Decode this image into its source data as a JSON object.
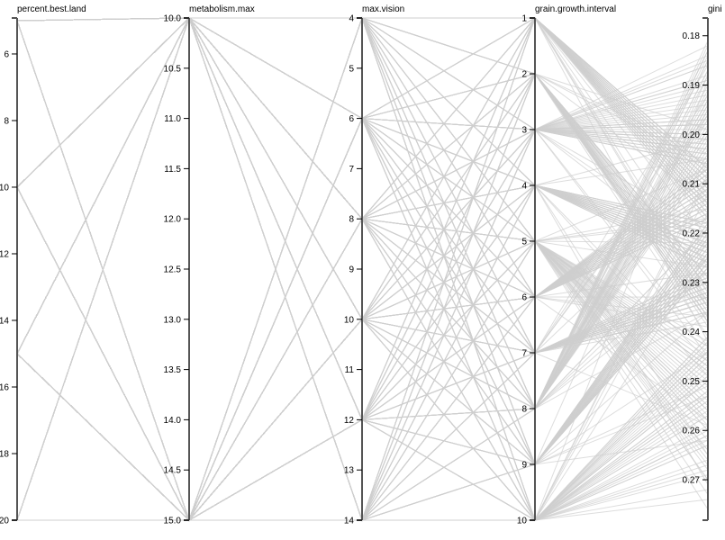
{
  "chart_data": {
    "type": "parallel-coordinates",
    "title": "",
    "grid": false,
    "dimensions": [
      {
        "name": "percent.best.land",
        "domain": [
          4.92,
          20
        ],
        "ticks": [
          6,
          8,
          10,
          12,
          14,
          16,
          18,
          20
        ],
        "tick_labels": [
          "6",
          "8",
          "10",
          "12",
          "14",
          "16",
          "18",
          "20"
        ],
        "levels": [
          5,
          10,
          15,
          20
        ]
      },
      {
        "name": "metabolism.max",
        "domain": [
          10,
          15
        ],
        "ticks": [
          10,
          10.5,
          11,
          11.5,
          12,
          12.5,
          13,
          13.5,
          14,
          14.5,
          15
        ],
        "tick_labels": [
          "10.0",
          "10.5",
          "11.0",
          "11.5",
          "12.0",
          "12.5",
          "13.0",
          "13.5",
          "14.0",
          "14.5",
          "15.0"
        ],
        "levels": [
          10,
          15
        ]
      },
      {
        "name": "max.vision",
        "domain": [
          4,
          14
        ],
        "ticks": [
          4,
          5,
          6,
          7,
          8,
          9,
          10,
          11,
          12,
          13,
          14
        ],
        "tick_labels": [
          "4",
          "5",
          "6",
          "7",
          "8",
          "9",
          "10",
          "11",
          "12",
          "13",
          "14"
        ],
        "levels": [
          4,
          6,
          8,
          10,
          12,
          14
        ]
      },
      {
        "name": "grain.growth.interval",
        "domain": [
          1,
          10
        ],
        "ticks": [
          1,
          2,
          3,
          4,
          5,
          6,
          7,
          8,
          9,
          10
        ],
        "tick_labels": [
          "1",
          "2",
          "3",
          "4",
          "5",
          "6",
          "7",
          "8",
          "9",
          "10"
        ],
        "levels": [
          1,
          2,
          3,
          4,
          5,
          6,
          7,
          8,
          9,
          10
        ]
      },
      {
        "name": "gini",
        "domain": [
          0.1764,
          0.2782
        ],
        "ticks": [
          0.18,
          0.19,
          0.2,
          0.21,
          0.22,
          0.23,
          0.24,
          0.25,
          0.26,
          0.27
        ],
        "tick_labels": [
          "0.18",
          "0.19",
          "0.20",
          "0.21",
          "0.22",
          "0.23",
          "0.24",
          "0.25",
          "0.26",
          "0.27"
        ]
      }
    ],
    "gini_values": [
      0.214,
      0.231,
      0.198,
      0.246,
      0.222,
      0.207,
      0.259,
      0.219,
      0.236,
      0.189,
      0.227,
      0.241,
      0.203,
      0.218,
      0.252,
      0.211,
      0.233,
      0.195,
      0.226,
      0.268,
      0.215,
      0.238,
      0.201,
      0.224,
      0.247,
      0.209,
      0.231,
      0.183,
      0.221,
      0.256,
      0.213,
      0.229,
      0.243,
      0.205,
      0.218,
      0.237,
      0.192,
      0.225,
      0.262,
      0.216,
      0.234,
      0.199,
      0.223,
      0.249,
      0.207,
      0.228,
      0.186,
      0.219,
      0.244,
      0.212,
      0.235,
      0.204,
      0.226,
      0.271,
      0.217,
      0.239,
      0.196,
      0.222,
      0.253,
      0.208,
      0.232,
      0.214,
      0.245,
      0.201,
      0.227,
      0.258,
      0.211,
      0.236,
      0.188,
      0.224,
      0.242,
      0.206,
      0.219,
      0.265,
      0.215,
      0.233,
      0.197,
      0.228,
      0.251,
      0.209,
      0.221,
      0.239,
      0.193,
      0.226,
      0.276,
      0.213,
      0.231,
      0.202,
      0.218,
      0.247,
      0.207,
      0.235,
      0.184,
      0.223,
      0.255,
      0.216,
      0.229,
      0.199,
      0.225,
      0.261,
      0.212,
      0.238,
      0.205,
      0.22,
      0.244,
      0.208,
      0.232,
      0.191,
      0.227,
      0.257,
      0.214,
      0.236,
      0.2,
      0.222,
      0.249,
      0.21,
      0.23,
      0.194,
      0.224,
      0.263,
      0.217,
      0.234,
      0.203,
      0.221,
      0.246,
      0.206,
      0.228,
      0.181,
      0.219,
      0.254,
      0.213,
      0.237,
      0.198,
      0.225,
      0.242,
      0.209,
      0.231,
      0.187,
      0.223,
      0.269,
      0.215,
      0.233,
      0.204,
      0.218,
      0.25,
      0.207,
      0.229,
      0.195,
      0.226,
      0.259,
      0.212,
      0.235,
      0.201,
      0.222,
      0.245,
      0.21,
      0.232,
      0.19,
      0.224,
      0.266,
      0.216,
      0.238,
      0.197,
      0.22,
      0.253,
      0.208,
      0.23,
      0.185,
      0.227,
      0.248,
      0.214,
      0.234,
      0.202,
      0.221,
      0.26,
      0.211,
      0.236,
      0.193,
      0.225,
      0.243,
      0.218,
      0.231,
      0.206,
      0.223,
      0.256,
      0.209,
      0.228,
      0.196,
      0.219,
      0.272,
      0.215,
      0.237,
      0.2,
      0.226,
      0.247,
      0.212,
      0.233,
      0.182,
      0.222,
      0.252,
      0.207,
      0.229,
      0.198,
      0.224,
      0.264,
      0.216,
      0.235,
      0.203,
      0.22,
      0.241,
      0.21,
      0.232,
      0.189,
      0.227,
      0.258,
      0.213,
      0.238,
      0.194,
      0.221,
      0.25,
      0.208,
      0.23,
      0.205,
      0.225,
      0.267,
      0.217,
      0.234,
      0.199,
      0.223,
      0.244,
      0.211,
      0.236,
      0.186,
      0.218,
      0.255,
      0.214,
      0.231,
      0.202,
      0.226,
      0.261,
      0.209,
      0.233,
      0.192,
      0.224,
      0.246,
      0.215,
      0.229,
      0.204,
      0.22,
      0.274,
      0.212,
      0.237,
      0.197,
      0.227,
      0.251,
      0.207,
      0.232,
      0.183,
      0.222,
      0.257,
      0.216,
      0.235,
      0.201,
      0.219,
      0.243,
      0.21,
      0.23,
      0.195,
      0.225,
      0.262,
      0.213,
      0.238,
      0.206,
      0.221,
      0.248,
      0.208,
      0.234,
      0.188,
      0.226,
      0.254,
      0.217,
      0.231,
      0.2,
      0.223,
      0.266,
      0.211,
      0.236,
      0.193,
      0.218,
      0.245,
      0.214,
      0.229,
      0.203,
      0.224,
      0.259,
      0.209,
      0.233,
      0.185,
      0.227,
      0.25,
      0.215,
      0.237,
      0.198,
      0.22,
      0.27,
      0.212,
      0.232,
      0.205,
      0.225,
      0.242,
      0.207,
      0.235,
      0.19,
      0.222,
      0.256,
      0.216,
      0.23,
      0.196,
      0.226,
      0.263,
      0.21,
      0.238,
      0.202,
      0.219,
      0.247,
      0.213,
      0.234,
      0.184,
      0.223,
      0.253,
      0.208,
      0.231,
      0.199,
      0.227,
      0.26,
      0.217,
      0.236,
      0.194,
      0.221,
      0.244,
      0.211,
      0.229,
      0.206,
      0.224,
      0.268,
      0.214,
      0.233,
      0.187,
      0.218,
      0.249,
      0.209,
      0.237,
      0.201,
      0.225,
      0.257,
      0.215,
      0.232,
      0.192,
      0.222,
      0.246,
      0.212,
      0.235,
      0.204,
      0.226,
      0.264,
      0.207,
      0.23,
      0.197,
      0.22,
      0.252,
      0.216,
      0.238,
      0.182,
      0.223,
      0.243,
      0.21,
      0.234,
      0.2,
      0.227,
      0.261,
      0.213,
      0.231,
      0.195,
      0.219,
      0.248,
      0.208,
      0.236,
      0.205,
      0.224,
      0.255,
      0.217,
      0.229,
      0.189,
      0.221,
      0.273,
      0.211,
      0.233,
      0.198,
      0.225,
      0.245,
      0.214,
      0.237,
      0.203,
      0.218,
      0.258,
      0.209,
      0.232,
      0.193,
      0.226,
      0.25,
      0.215,
      0.235,
      0.186,
      0.222,
      0.265,
      0.212,
      0.23,
      0.201,
      0.227,
      0.242,
      0.207,
      0.238,
      0.196,
      0.22,
      0.254,
      0.216,
      0.234,
      0.204,
      0.224,
      0.26,
      0.21,
      0.231,
      0.191,
      0.223,
      0.247,
      0.213,
      0.236,
      0.199,
      0.219,
      0.267,
      0.208,
      0.229,
      0.185,
      0.226,
      0.251,
      0.217,
      0.233,
      0.202,
      0.221,
      0.244,
      0.211,
      0.237,
      0.194,
      0.225,
      0.262,
      0.214,
      0.232,
      0.206,
      0.218,
      0.249,
      0.209,
      0.235,
      0.188,
      0.222,
      0.256,
      0.215,
      0.23,
      0.2,
      0.227,
      0.241,
      0.212,
      0.238,
      0.197,
      0.224,
      0.27,
      0.207,
      0.234,
      0.183,
      0.22,
      0.253
    ]
  }
}
